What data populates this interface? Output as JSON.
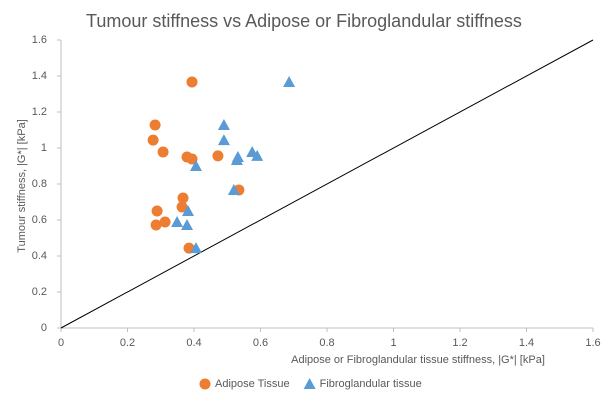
{
  "chart_data": {
    "type": "scatter",
    "title": "Tumour stiffness vs Adipose or Fibroglandular stiffness",
    "x_label": "Adipose or Fibroglandular tissue stiffness, |G*| [kPa]",
    "y_label": "Tumour stiffness, |G*| [kPa]",
    "xlim": [
      0,
      1.6
    ],
    "ylim": [
      0,
      1.6
    ],
    "xticks": [
      0,
      0.2,
      0.4,
      0.6,
      0.8,
      1,
      1.2,
      1.4,
      1.6
    ],
    "yticks": [
      0,
      0.2,
      0.4,
      0.6,
      0.8,
      1,
      1.2,
      1.4,
      1.6
    ],
    "legend": "bottom",
    "series": [
      {
        "name": "Adipose Tissue",
        "color": "#ed7d31",
        "marker": "circle",
        "x": [
          0.277,
          0.283,
          0.394,
          0.307,
          0.379,
          0.394,
          0.472,
          0.367,
          0.364,
          0.289,
          0.286,
          0.313,
          0.385,
          0.535
        ],
        "values": [
          1.044,
          1.128,
          1.367,
          0.978,
          0.95,
          0.939,
          0.956,
          0.722,
          0.672,
          0.65,
          0.572,
          0.589,
          0.444,
          0.767
        ]
      },
      {
        "name": "Fibroglandular tissue",
        "color": "#5b9bd5",
        "marker": "triangle",
        "x": [
          0.686,
          0.49,
          0.49,
          0.406,
          0.532,
          0.529,
          0.575,
          0.59,
          0.52,
          0.382,
          0.349,
          0.379,
          0.406
        ],
        "values": [
          1.367,
          1.128,
          1.044,
          0.9,
          0.95,
          0.933,
          0.978,
          0.956,
          0.767,
          0.65,
          0.589,
          0.572,
          0.444
        ]
      }
    ]
  }
}
